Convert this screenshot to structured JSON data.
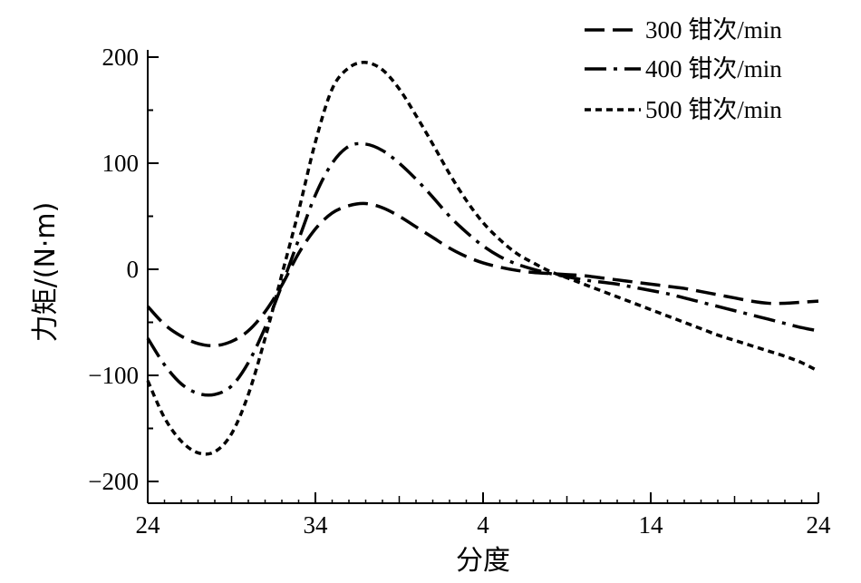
{
  "chart_data": {
    "type": "line",
    "xlabel": "分度",
    "ylabel": "力矩/(N·m)",
    "x_tick_labels": [
      "24",
      "34",
      "4",
      "14",
      "24"
    ],
    "y_tick_labels": [
      "200",
      "100",
      "0",
      "−100",
      "−200"
    ],
    "y_ticks": [
      200,
      100,
      0,
      -100,
      -200
    ],
    "xlim": [
      0,
      40
    ],
    "ylim": [
      -220,
      220
    ],
    "legend_position": "top-right",
    "series": [
      {
        "name": "300 钳次/min",
        "dash": "long-dash",
        "x": [
          0,
          1,
          2,
          3,
          4,
          5,
          6,
          7,
          8,
          9,
          10,
          11,
          12,
          13,
          14,
          15,
          16,
          17,
          18,
          19,
          20,
          21,
          22,
          23,
          24,
          25,
          26,
          27,
          28,
          29,
          30,
          31,
          32,
          33,
          34,
          35,
          36,
          37,
          38,
          39,
          40
        ],
        "values": [
          -35,
          -52,
          -63,
          -70,
          -72,
          -68,
          -58,
          -40,
          -15,
          15,
          38,
          53,
          60,
          62,
          58,
          50,
          40,
          30,
          20,
          12,
          6,
          2,
          -1,
          -3,
          -4,
          -5,
          -6,
          -8,
          -10,
          -12,
          -14,
          -16,
          -18,
          -21,
          -24,
          -27,
          -30,
          -32,
          -32,
          -31,
          -30
        ]
      },
      {
        "name": "400 钳次/min",
        "dash": "dash-dot",
        "x": [
          0,
          1,
          2,
          3,
          4,
          5,
          6,
          7,
          8,
          9,
          10,
          11,
          12,
          13,
          14,
          15,
          16,
          17,
          18,
          19,
          20,
          21,
          22,
          23,
          24,
          25,
          26,
          27,
          28,
          29,
          30,
          31,
          32,
          33,
          34,
          35,
          36,
          37,
          38,
          39,
          40
        ],
        "values": [
          -65,
          -90,
          -108,
          -117,
          -118,
          -110,
          -88,
          -55,
          -15,
          28,
          70,
          100,
          116,
          118,
          112,
          100,
          85,
          68,
          50,
          35,
          22,
          12,
          5,
          0,
          -4,
          -7,
          -10,
          -12,
          -14,
          -17,
          -20,
          -23,
          -27,
          -31,
          -35,
          -39,
          -43,
          -47,
          -51,
          -55,
          -58
        ]
      },
      {
        "name": "500 钳次/min",
        "dash": "short-dash",
        "x": [
          0,
          1,
          2,
          3,
          4,
          5,
          6,
          7,
          8,
          9,
          10,
          11,
          12,
          13,
          14,
          15,
          16,
          17,
          18,
          19,
          20,
          21,
          22,
          23,
          24,
          25,
          26,
          27,
          28,
          29,
          30,
          31,
          32,
          33,
          34,
          35,
          36,
          37,
          38,
          39,
          40
        ],
        "values": [
          -105,
          -140,
          -162,
          -173,
          -172,
          -155,
          -118,
          -65,
          -5,
          55,
          120,
          170,
          190,
          195,
          188,
          170,
          145,
          118,
          90,
          65,
          44,
          28,
          15,
          6,
          -2,
          -8,
          -14,
          -20,
          -26,
          -32,
          -38,
          -44,
          -50,
          -56,
          -62,
          -67,
          -72,
          -77,
          -82,
          -88,
          -96
        ]
      }
    ]
  }
}
